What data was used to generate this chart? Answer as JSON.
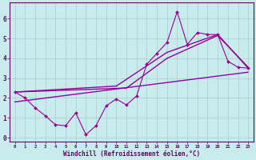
{
  "xlabel": "Windchill (Refroidissement éolien,°C)",
  "bg_color": "#c8ecec",
  "line_color": "#990099",
  "grid_color": "#aacccc",
  "axis_color": "#660066",
  "xlim": [
    -0.5,
    23.5
  ],
  "ylim": [
    -0.2,
    6.8
  ],
  "yticks": [
    0,
    1,
    2,
    3,
    4,
    5,
    6
  ],
  "xticks": [
    0,
    1,
    2,
    3,
    4,
    5,
    6,
    7,
    8,
    9,
    10,
    11,
    12,
    13,
    14,
    15,
    16,
    17,
    18,
    19,
    20,
    21,
    22,
    23
  ],
  "line1_x": [
    0,
    1,
    2,
    3,
    4,
    5,
    6,
    7,
    8,
    9,
    10,
    11,
    12,
    13,
    14,
    15,
    16,
    17,
    18,
    19,
    20,
    21,
    22,
    23
  ],
  "line1_y": [
    2.3,
    2.0,
    1.5,
    1.1,
    0.65,
    0.6,
    1.25,
    0.15,
    0.6,
    1.6,
    1.95,
    1.65,
    2.1,
    3.7,
    4.25,
    4.8,
    6.35,
    4.7,
    5.3,
    5.2,
    5.2,
    3.85,
    3.55,
    3.5
  ],
  "line2_x": [
    0,
    23
  ],
  "line2_y": [
    1.8,
    3.3
  ],
  "line3_x": [
    0,
    11,
    15,
    20,
    23
  ],
  "line3_y": [
    2.3,
    2.5,
    4.0,
    5.15,
    3.55
  ],
  "line4_x": [
    0,
    10,
    15,
    20,
    23
  ],
  "line4_y": [
    2.3,
    2.6,
    4.3,
    5.2,
    3.5
  ]
}
